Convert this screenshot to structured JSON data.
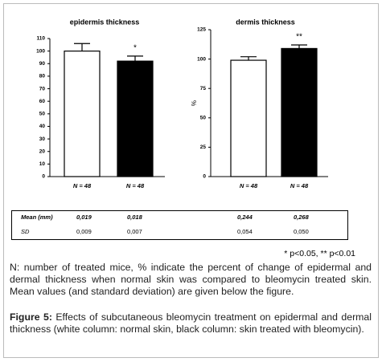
{
  "chart_data": [
    {
      "type": "bar",
      "title": "epidermis thickness",
      "categories": [
        "N = 48",
        "N = 48"
      ],
      "values": [
        100,
        92
      ],
      "errors": [
        6,
        4
      ],
      "colors": [
        "#ffffff",
        "#000000"
      ],
      "bar_labels": [
        null,
        "*"
      ],
      "ylim": [
        0,
        110
      ],
      "yticks": [
        0,
        10,
        20,
        30,
        40,
        50,
        60,
        70,
        80,
        90,
        100,
        110
      ]
    },
    {
      "type": "bar",
      "title": "dermis thickness",
      "ylabel": "%",
      "categories": [
        "N = 48",
        "N = 48"
      ],
      "values": [
        99,
        109
      ],
      "errors": [
        3,
        3
      ],
      "colors": [
        "#ffffff",
        "#000000"
      ],
      "bar_labels": [
        null,
        "**"
      ],
      "ylim": [
        0,
        125
      ],
      "yticks": [
        0,
        25,
        50,
        75,
        100,
        125
      ]
    }
  ],
  "table": {
    "rows": [
      [
        "Mean (mm)",
        "0,019",
        "0,018",
        "0,244",
        "0,268"
      ],
      [
        "SD",
        "0,009",
        "0,007",
        "0,054",
        "0,050"
      ]
    ]
  },
  "footnote": "* p<0.05, ** p<0.01",
  "note": "N: number of treated mice, % indicate the percent of change of epidermal and dermal thickness when normal skin was compared to bleomycin treated skin. Mean values (and standard deviation) are given below the figure.",
  "caption": {
    "label": "Figure 5:",
    "text": "Effects of subcutaneous bleomycin treatment on epidermal and dermal thickness (white column: normal skin, black column: skin treated with bleomycin)."
  }
}
